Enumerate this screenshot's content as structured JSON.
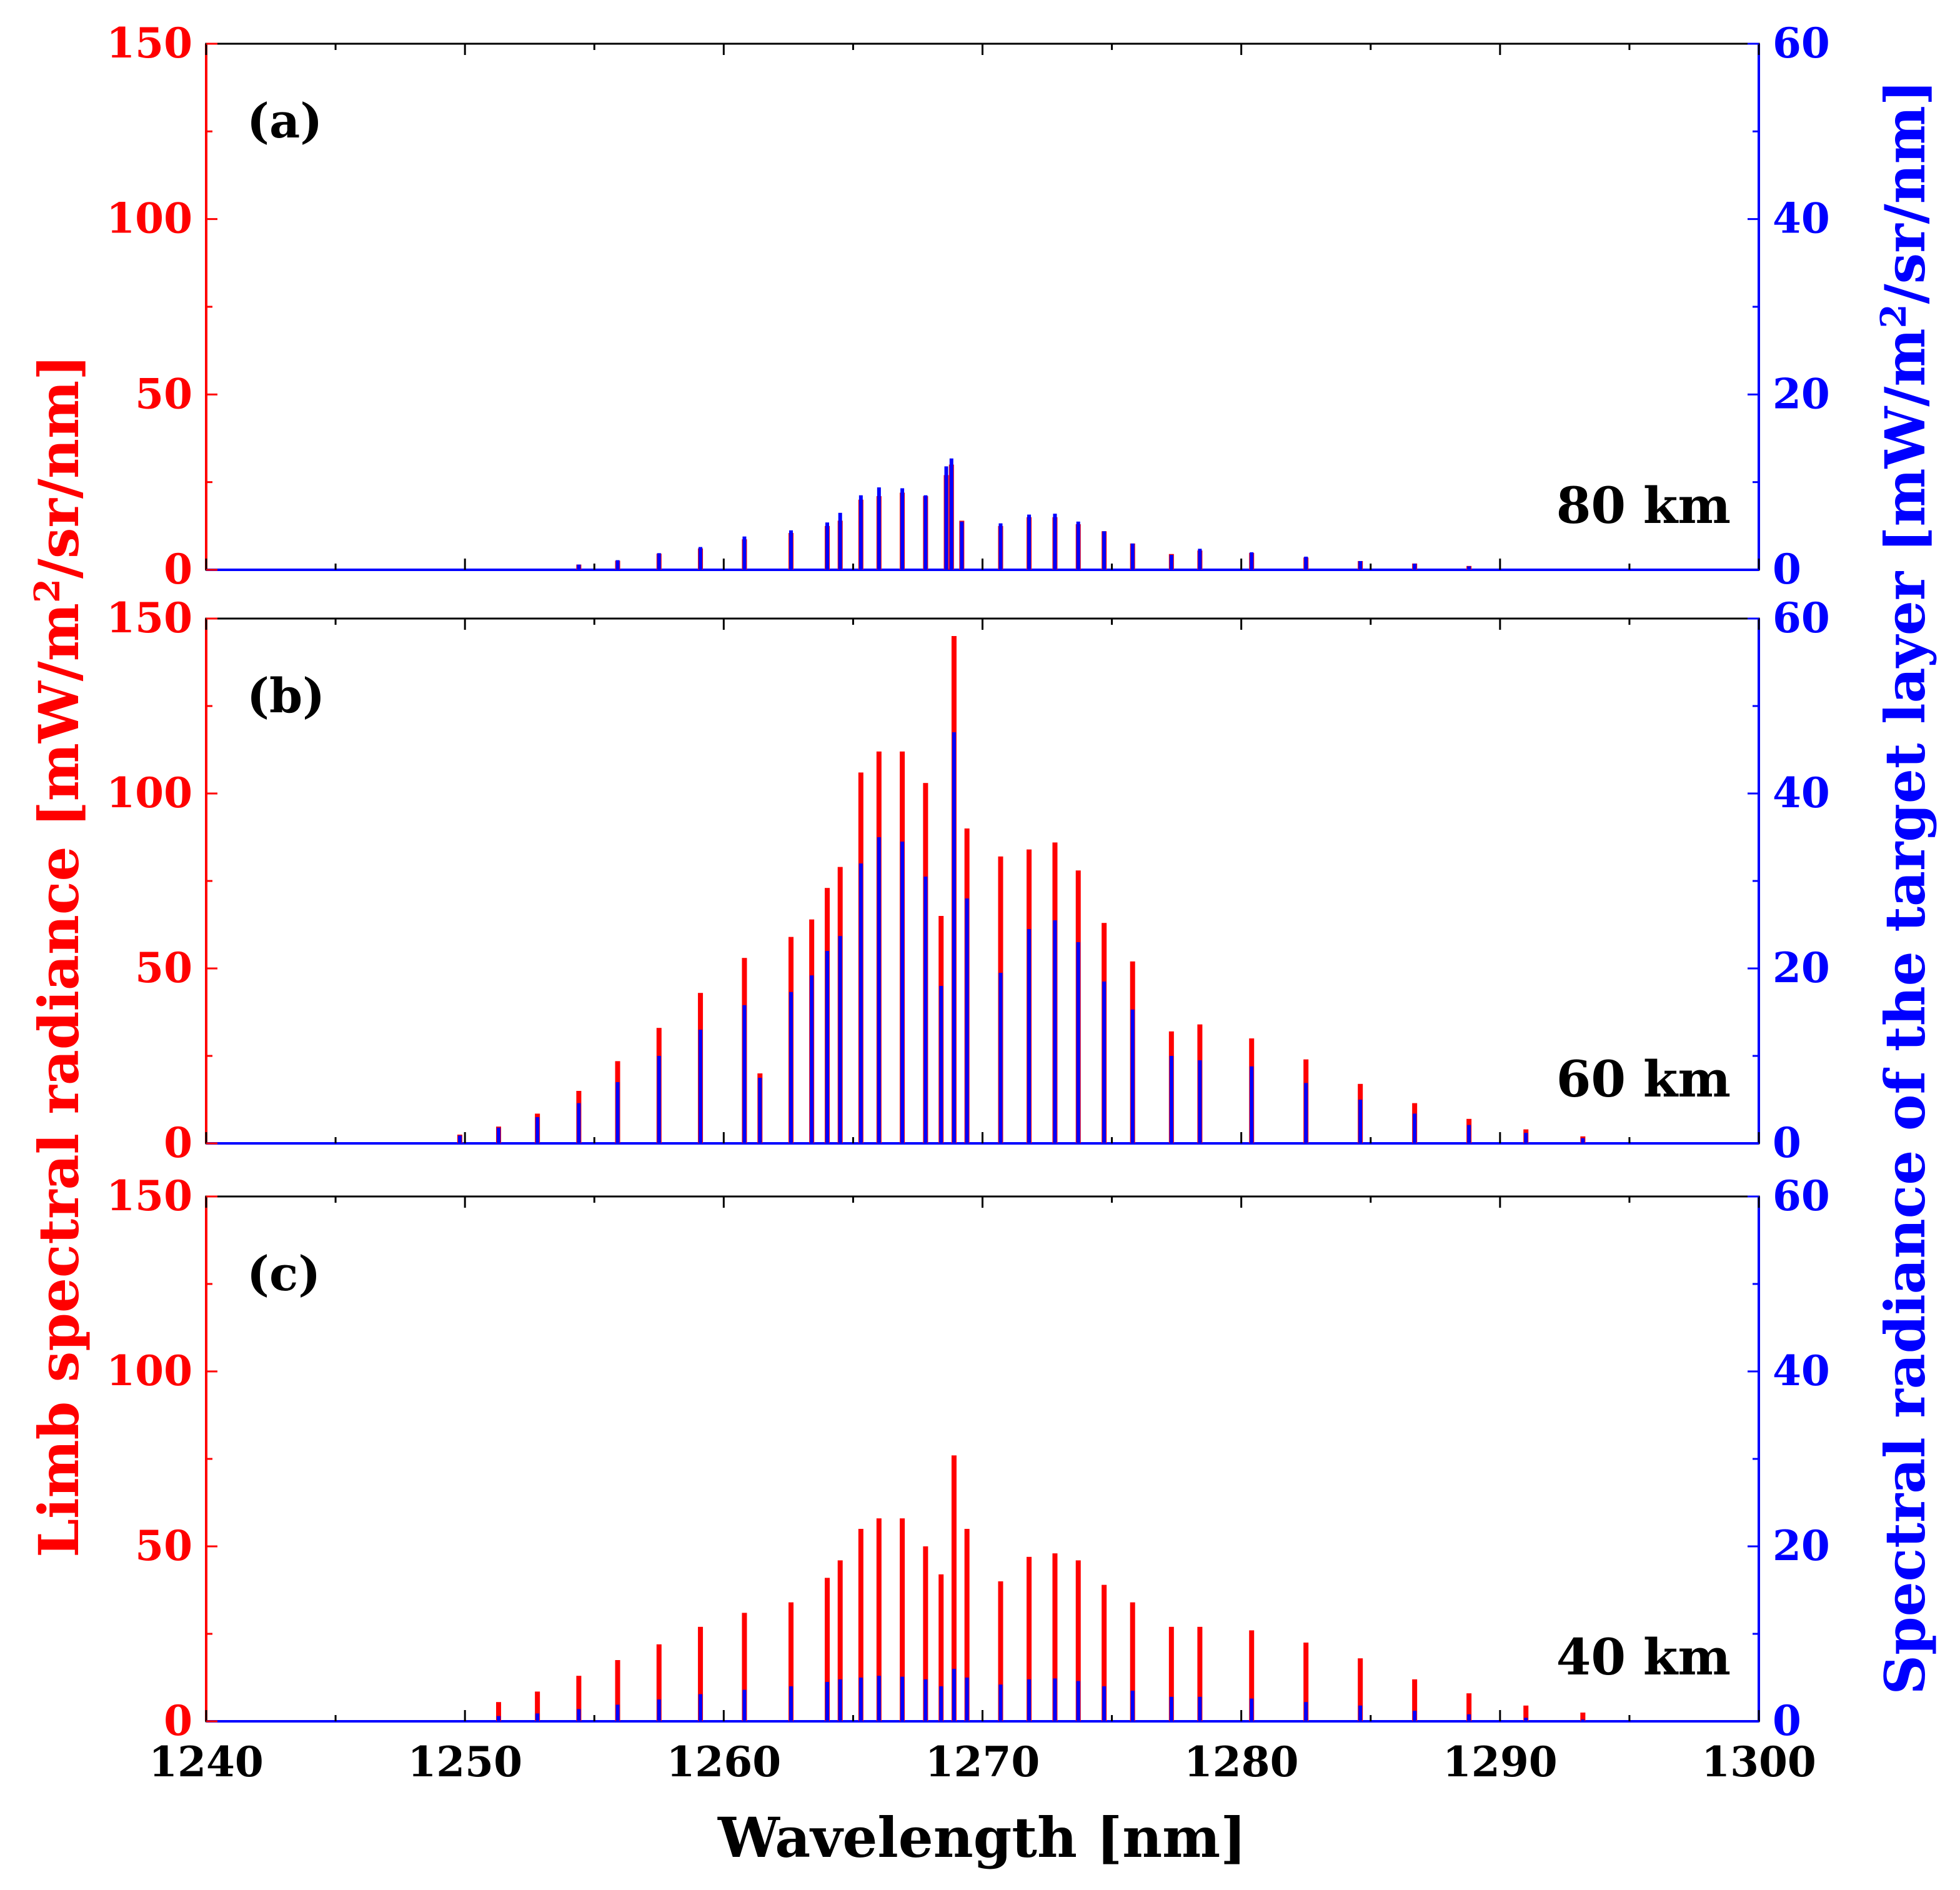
{
  "colors": {
    "limb": "#ff0000",
    "target": "#0000ff",
    "axis": "#000000",
    "background": "#ffffff"
  },
  "chart_data": {
    "type": "bar",
    "xlabel": "Wavelength [nm]",
    "ylabel_left": {
      "main": "Limb spectral radiance [mW/m",
      "sup": "2",
      "tail": "/sr/nm]"
    },
    "ylabel_right": {
      "main": "Spectral radiance of the target layer [mW/m",
      "sup": "2",
      "tail": "/sr/nm]"
    },
    "xlim": [
      1240,
      1300
    ],
    "xticks": [
      1240,
      1250,
      1260,
      1270,
      1280,
      1290,
      1300
    ],
    "ylim_left": [
      0,
      150
    ],
    "yticks_left": [
      0,
      50,
      100,
      150
    ],
    "ylim_right": [
      0,
      60
    ],
    "yticks_right": [
      0,
      20,
      40,
      60
    ],
    "series_names": [
      "Limb spectral radiance",
      "Spectral radiance of the target layer"
    ],
    "panels": [
      {
        "label": "(a)",
        "altitude": "80 km",
        "lines": [
          [
            1254.4,
            1.5,
            0.6
          ],
          [
            1255.9,
            2.6,
            1.1
          ],
          [
            1257.5,
            4.6,
            1.9
          ],
          [
            1259.1,
            6.1,
            2.6
          ],
          [
            1260.8,
            8.7,
            3.8
          ],
          [
            1262.6,
            10.5,
            4.5
          ],
          [
            1264.0,
            12.5,
            5.4
          ],
          [
            1264.5,
            14.0,
            6.5
          ],
          [
            1265.3,
            20.0,
            8.5
          ],
          [
            1266.0,
            21.0,
            9.4
          ],
          [
            1266.9,
            22.0,
            9.3
          ],
          [
            1267.8,
            21.0,
            8.5
          ],
          [
            1268.6,
            27.0,
            11.8
          ],
          [
            1268.8,
            30.0,
            12.7
          ],
          [
            1269.2,
            14.0,
            5.5
          ],
          [
            1270.7,
            12.5,
            5.3
          ],
          [
            1271.8,
            15.0,
            6.3
          ],
          [
            1272.8,
            15.0,
            6.4
          ],
          [
            1273.7,
            13.0,
            5.5
          ],
          [
            1274.7,
            11.0,
            4.4
          ],
          [
            1275.8,
            7.5,
            3.0
          ],
          [
            1277.3,
            4.5,
            1.7
          ],
          [
            1278.4,
            5.5,
            2.4
          ],
          [
            1280.4,
            4.8,
            2.0
          ],
          [
            1282.5,
            3.5,
            1.5
          ],
          [
            1284.6,
            2.5,
            1.0
          ],
          [
            1286.7,
            1.8,
            0.7
          ],
          [
            1288.8,
            1.1,
            0.4
          ]
        ]
      },
      {
        "label": "(b)",
        "altitude": "60 km",
        "lines": [
          [
            1249.8,
            2.5,
            0.9
          ],
          [
            1251.3,
            4.8,
            1.8
          ],
          [
            1252.8,
            8.5,
            3.0
          ],
          [
            1254.4,
            15.0,
            4.6
          ],
          [
            1255.9,
            23.5,
            7.0
          ],
          [
            1257.5,
            33.0,
            10.0
          ],
          [
            1259.1,
            43.0,
            13.0
          ],
          [
            1260.8,
            53.0,
            15.8
          ],
          [
            1261.4,
            20.0,
            7.5
          ],
          [
            1262.6,
            59.0,
            17.3
          ],
          [
            1263.4,
            64.0,
            19.2
          ],
          [
            1264.0,
            73.0,
            22.0
          ],
          [
            1264.5,
            79.0,
            23.7
          ],
          [
            1265.3,
            106.0,
            32.0
          ],
          [
            1266.0,
            112.0,
            35.0
          ],
          [
            1266.9,
            112.0,
            34.5
          ],
          [
            1267.8,
            103.0,
            30.5
          ],
          [
            1268.4,
            65.0,
            18.0
          ],
          [
            1268.9,
            145.0,
            47.0
          ],
          [
            1269.4,
            90.0,
            28.0
          ],
          [
            1270.7,
            82.0,
            19.5
          ],
          [
            1271.8,
            84.0,
            24.5
          ],
          [
            1272.8,
            86.0,
            25.5
          ],
          [
            1273.7,
            78.0,
            23.0
          ],
          [
            1274.7,
            63.0,
            18.5
          ],
          [
            1275.8,
            52.0,
            15.3
          ],
          [
            1277.3,
            32.0,
            10.0
          ],
          [
            1278.4,
            34.0,
            9.5
          ],
          [
            1280.4,
            30.0,
            8.8
          ],
          [
            1282.5,
            24.0,
            6.9
          ],
          [
            1284.6,
            17.0,
            5.0
          ],
          [
            1286.7,
            11.5,
            3.4
          ],
          [
            1288.8,
            7.0,
            2.1
          ],
          [
            1291.0,
            4.0,
            1.2
          ],
          [
            1293.2,
            2.0,
            0.6
          ]
        ]
      },
      {
        "label": "(c)",
        "altitude": "40 km",
        "lines": [
          [
            1251.3,
            5.5,
            0.6
          ],
          [
            1252.8,
            8.5,
            0.9
          ],
          [
            1254.4,
            13.0,
            1.4
          ],
          [
            1255.9,
            17.5,
            1.9
          ],
          [
            1257.5,
            22.0,
            2.5
          ],
          [
            1259.1,
            27.0,
            3.1
          ],
          [
            1260.8,
            31.0,
            3.6
          ],
          [
            1262.6,
            34.0,
            4.0
          ],
          [
            1264.0,
            41.0,
            4.5
          ],
          [
            1264.5,
            46.0,
            4.8
          ],
          [
            1265.3,
            55.0,
            5.0
          ],
          [
            1266.0,
            58.0,
            5.2
          ],
          [
            1266.9,
            58.0,
            5.1
          ],
          [
            1267.8,
            50.0,
            4.8
          ],
          [
            1268.4,
            42.0,
            4.0
          ],
          [
            1268.9,
            76.0,
            6.0
          ],
          [
            1269.4,
            55.0,
            5.0
          ],
          [
            1270.7,
            40.0,
            4.2
          ],
          [
            1271.8,
            47.0,
            4.8
          ],
          [
            1272.8,
            48.0,
            4.9
          ],
          [
            1273.7,
            46.0,
            4.6
          ],
          [
            1274.7,
            39.0,
            4.0
          ],
          [
            1275.8,
            34.0,
            3.5
          ],
          [
            1277.3,
            27.0,
            2.8
          ],
          [
            1278.4,
            27.0,
            2.8
          ],
          [
            1280.4,
            26.0,
            2.6
          ],
          [
            1282.5,
            22.5,
            2.2
          ],
          [
            1284.6,
            18.0,
            1.8
          ],
          [
            1286.7,
            12.0,
            1.2
          ],
          [
            1288.8,
            8.0,
            0.8
          ],
          [
            1291.0,
            4.5,
            0.4
          ],
          [
            1293.2,
            2.5,
            0.2
          ]
        ]
      }
    ]
  }
}
